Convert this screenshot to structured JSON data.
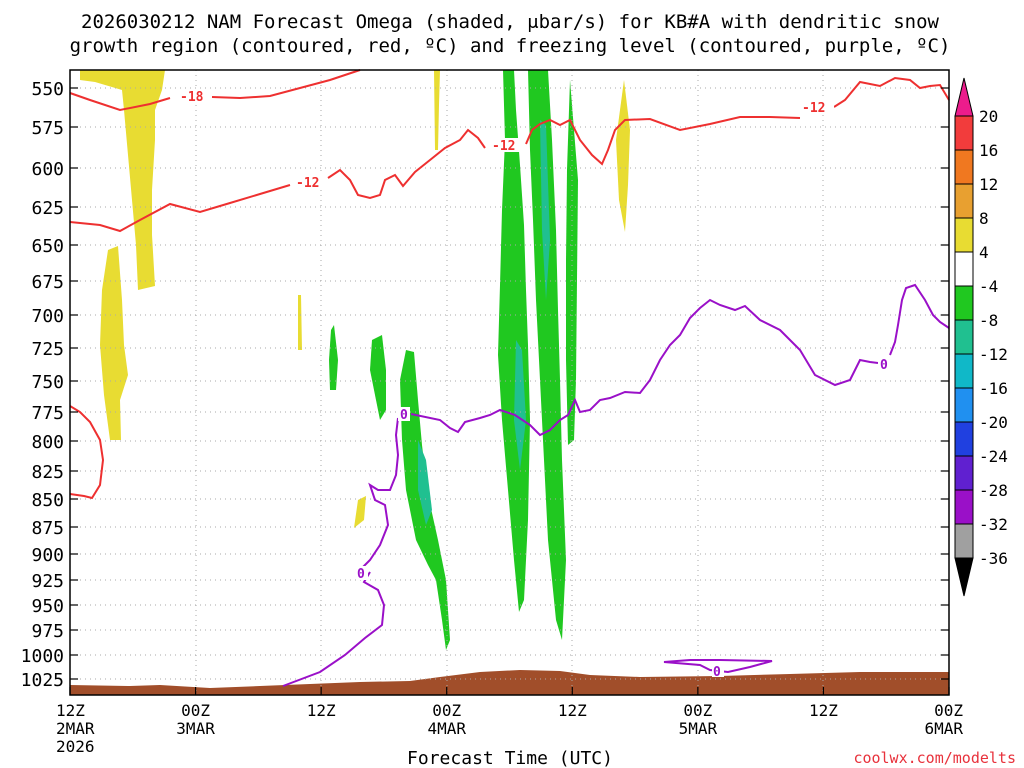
{
  "title_line1": "2026030212 NAM Forecast Omega (shaded, μbar/s) for KB#A with dendritic snow",
  "title_line2": "growth region (contoured, red, ºC) and freezing level (contoured, purple, ºC)",
  "watermark": "coolwx.com/modelts",
  "chart_data": {
    "type": "heatmap",
    "xlabel": "Forecast Time (UTC)",
    "y_levels": [
      "550",
      "575",
      "600",
      "625",
      "650",
      "675",
      "700",
      "725",
      "750",
      "775",
      "800",
      "825",
      "850",
      "875",
      "900",
      "925",
      "950",
      "975",
      "1000",
      "1025"
    ],
    "x_ticks": [
      {
        "hour": 0,
        "label": "12Z",
        "sub1": "2MAR",
        "sub2": "2026"
      },
      {
        "hour": 12,
        "label": "00Z",
        "sub1": "3MAR",
        "sub2": ""
      },
      {
        "hour": 24,
        "label": "12Z",
        "sub1": "",
        "sub2": ""
      },
      {
        "hour": 36,
        "label": "00Z",
        "sub1": "4MAR",
        "sub2": ""
      },
      {
        "hour": 48,
        "label": "12Z",
        "sub1": "",
        "sub2": ""
      },
      {
        "hour": 60,
        "label": "00Z",
        "sub1": "5MAR",
        "sub2": ""
      },
      {
        "hour": 72,
        "label": "12Z",
        "sub1": "",
        "sub2": ""
      },
      {
        "hour": 84,
        "label": "00Z",
        "sub1": "6MAR",
        "sub2": ""
      }
    ],
    "colorbar": {
      "labels": [
        "20",
        "16",
        "12",
        "8",
        "4",
        "-4",
        "-8",
        "-12",
        "-16",
        "-20",
        "-24",
        "-28",
        "-32",
        "-36"
      ],
      "colors": [
        "#ec1c8c",
        "#f23c3c",
        "#f07820",
        "#e8a030",
        "#e8dc32",
        "#ffffff",
        "#20c820",
        "#20c090",
        "#10b8c8",
        "#2090f0",
        "#2040e0",
        "#6020d0",
        "#9a10c8",
        "#a0a0a0",
        "#000000"
      ]
    },
    "contour_labels": [
      "-18",
      "-12",
      "-12",
      "-12",
      "0",
      "0",
      "0",
      "0"
    ],
    "grid": true
  }
}
